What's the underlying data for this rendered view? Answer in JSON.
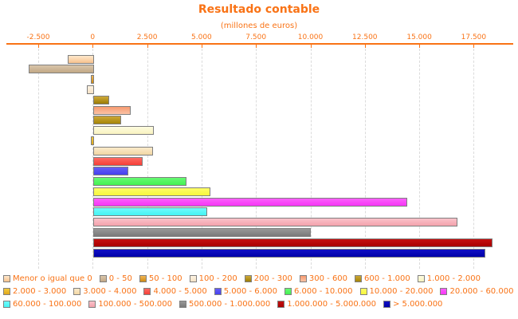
{
  "title": "Resultado contable",
  "subtitle": "(millones de euros)",
  "theme": {
    "accent_orange": "#F97316",
    "bar_border": "#7F7F7F",
    "gridline": "#DBDBDB",
    "swatch_border": "#808080",
    "background": "#FFFFFF"
  },
  "chart_data": {
    "type": "bar",
    "orientation": "horizontal",
    "title": "Resultado contable",
    "subtitle": "(millones de euros)",
    "xlabel": "(millones de euros)",
    "ylabel": "",
    "xlim": [
      -2500,
      17500
    ],
    "grid": true,
    "legend_position": "bottom",
    "x_ticks": [
      {
        "label": "-2.500",
        "value": -2500
      },
      {
        "label": "0",
        "value": 0
      },
      {
        "label": "2.500",
        "value": 2500
      },
      {
        "label": "5.000",
        "value": 5000
      },
      {
        "label": "7.500",
        "value": 7500
      },
      {
        "label": "10.000",
        "value": 10000
      },
      {
        "label": "12.500",
        "value": 12500
      },
      {
        "label": "15.000",
        "value": 15000
      },
      {
        "label": "17.500",
        "value": 17500
      }
    ],
    "series": [
      {
        "label": "Menor o igual que 0",
        "value": -1150,
        "color_top": "#FFE8CC",
        "color_bottom": "#F7C28E"
      },
      {
        "label": "0 - 50",
        "value": -2950,
        "color_top": "#D9C5AA",
        "color_bottom": "#C2A885"
      },
      {
        "label": "50 - 100",
        "value": -80,
        "color_top": "#F2B657",
        "color_bottom": "#CE8A12"
      },
      {
        "label": "100 - 200",
        "value": -260,
        "color_top": "#FDF2E2",
        "color_bottom": "#F6E2C6"
      },
      {
        "label": "200 - 300",
        "value": 660,
        "color_top": "#CFAA3A",
        "color_bottom": "#9C7C04"
      },
      {
        "label": "300 - 600",
        "value": 1640,
        "color_top": "#F69A70",
        "color_bottom": "#FBC2A4"
      },
      {
        "label": "600 - 1.000",
        "value": 1190,
        "color_top": "#CBA636",
        "color_bottom": "#A68507"
      },
      {
        "label": "1.000 - 2.000",
        "value": 2680,
        "color_top": "#FDFBDF",
        "color_bottom": "#F9F3C0"
      },
      {
        "label": "2.000 - 3.000",
        "value": -50,
        "color_top": "#F3CA3E",
        "color_bottom": "#E0A81C"
      },
      {
        "label": "3.000 - 4.000",
        "value": 2660,
        "color_top": "#FBEACB",
        "color_bottom": "#F2D7A4"
      },
      {
        "label": "4.000 - 5.000",
        "value": 2180,
        "color_top": "#FD6A62",
        "color_bottom": "#F63F38"
      },
      {
        "label": "5.000 - 6.000",
        "value": 1520,
        "color_top": "#655EF6",
        "color_bottom": "#4540EF"
      },
      {
        "label": "6.000 - 10.000",
        "value": 4200,
        "color_top": "#66FA72",
        "color_bottom": "#44F052"
      },
      {
        "label": "10.000 - 20.000",
        "value": 5280,
        "color_top": "#FDFD67",
        "color_bottom": "#F6F63D"
      },
      {
        "label": "20.000 - 60.000",
        "value": 14320,
        "color_top": "#FC5FFC",
        "color_bottom": "#F536F5"
      },
      {
        "label": "60.000 - 100.000",
        "value": 5150,
        "color_top": "#6FFBFB",
        "color_bottom": "#45F3F3"
      },
      {
        "label": "100.000 - 500.000",
        "value": 16640,
        "color_top": "#FAC2CA",
        "color_bottom": "#F3A2AC"
      },
      {
        "label": "500.000 - 1.000.000",
        "value": 9915,
        "color_top": "#989898",
        "color_bottom": "#7A7A7A"
      },
      {
        "label": "1.000.000 - 5.000.000",
        "value": 18270,
        "color_top": "#C51010",
        "color_bottom": "#A80000"
      },
      {
        "label": "> 5.000.000",
        "value": 17930,
        "color_top": "#1010C5",
        "color_bottom": "#0000A8"
      }
    ]
  }
}
